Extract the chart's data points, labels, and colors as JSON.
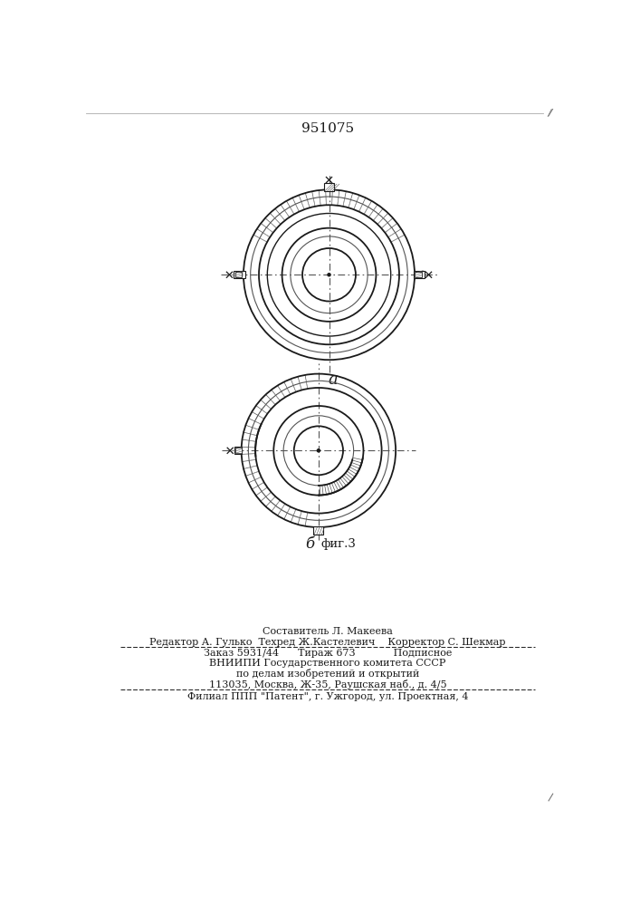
{
  "title": "951075",
  "label_a": "a",
  "label_b": "б",
  "label_fig": "фиг.3",
  "footer_line1": "Составитель Л. Макеева",
  "footer_line2": "Редактор А. Гулько  Техред Ж.Кастелевич    Корректор С. Шекмар",
  "footer_line3": "Заказ 5931/44      Тираж 673            Подписное",
  "footer_line4": "ВНИИПИ Государственного комитета СССР",
  "footer_line5": "по делам изобретений и открытий",
  "footer_line6": "113035, Москва, Ж-35, Раушская наб., д. 4/5",
  "footer_line7": "Филиал ППП \"Патент\", г. Ужгород, ул. Проектная, 4",
  "bg_color": "#ffffff",
  "line_color": "#1a1a1a"
}
